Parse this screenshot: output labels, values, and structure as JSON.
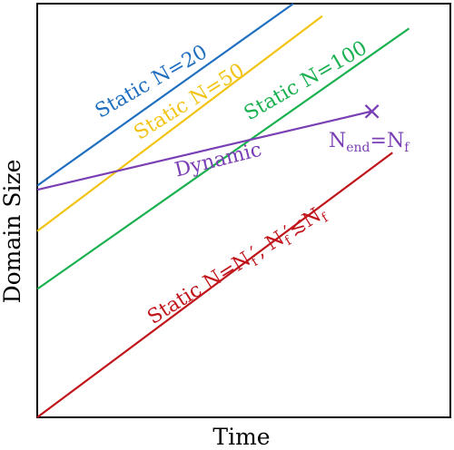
{
  "chart_data": {
    "type": "line",
    "xlabel": "Time",
    "ylabel": "Domain Size",
    "xlim": [
      0,
      1
    ],
    "ylim": [
      0,
      1
    ],
    "grid": false,
    "legend": "none",
    "series": [
      {
        "name": "Static N=20",
        "color": "#1f6fc0",
        "x": [
          0,
          0.62
        ],
        "y": [
          0.56,
          1.0
        ]
      },
      {
        "name": "Static N=50",
        "color": "#f2c312",
        "x": [
          0,
          0.69
        ],
        "y": [
          0.45,
          0.97
        ]
      },
      {
        "name": "Static N=100",
        "color": "#19b04f",
        "x": [
          0,
          0.9
        ],
        "y": [
          0.31,
          0.94
        ]
      },
      {
        "name": "Dynamic",
        "color": "#7b3fb5",
        "x": [
          0,
          0.81
        ],
        "y": [
          0.55,
          0.74
        ]
      },
      {
        "name": "Static N=N′f, N′f ≲ Nf",
        "color": "#c0141a",
        "x": [
          0,
          0.86
        ],
        "y": [
          0.0,
          0.64
        ]
      }
    ],
    "annotations": {
      "static20": "Static N=20",
      "static50": "Static N=50",
      "static100": "Static N=100",
      "dynamic": "Dynamic",
      "nend": {
        "base": "N",
        "sub": "end",
        "eq": "=N",
        "sub2": "f"
      },
      "staticNf": {
        "a": "Static N=N",
        "b": "f",
        "c": "′, N",
        "d": "f",
        "e": "′≲N",
        "f": "f"
      }
    },
    "end_marker": {
      "series": "Dynamic",
      "x": 0.81,
      "y": 0.74,
      "symbol": "×"
    }
  }
}
